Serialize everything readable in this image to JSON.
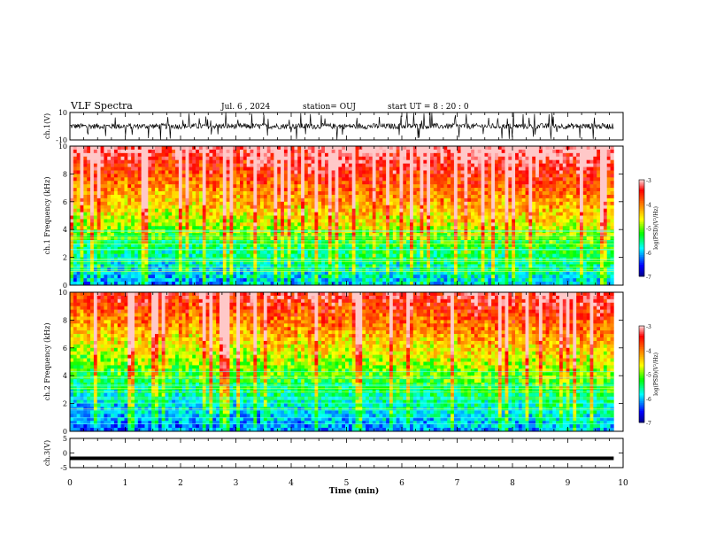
{
  "header": {
    "title": "VLF Spectra",
    "date": "Jul. 6 , 2024",
    "station": "station= OUJ",
    "start": "start UT = 8 : 20 : 0"
  },
  "chart_data": [
    {
      "type": "line",
      "name": "ch1-waveform",
      "ylabel": "ch.1(V)",
      "ylim": [
        -10,
        10
      ],
      "yticks": [
        "10",
        "-10"
      ],
      "xlim": [
        0,
        10
      ],
      "color": "#000000",
      "description_values": {
        "baseline": 0,
        "typical_amplitude": 2,
        "spike_amplitude": 10
      }
    },
    {
      "type": "heatmap",
      "name": "ch1-spectrogram",
      "ylabel": "ch.1 Frequency (kHz)",
      "ylim": [
        0,
        10
      ],
      "yticks": [
        "0",
        "2",
        "4",
        "6",
        "8",
        "10"
      ],
      "xlim": [
        0,
        9.83
      ],
      "colorbar": {
        "label": "log(PSD)(V²/Hz)",
        "range": [
          -7,
          -3
        ],
        "ticks": [
          "-3",
          "-4",
          "-5",
          "-6",
          "-7"
        ],
        "colors": [
          "#000080",
          "#0000ff",
          "#00ffff",
          "#00ff00",
          "#ffff00",
          "#ff8000",
          "#ff0000",
          "#ffffff"
        ]
      }
    },
    {
      "type": "heatmap",
      "name": "ch2-spectrogram",
      "ylabel": "ch.2 Frequency (kHz)",
      "ylim": [
        0,
        10
      ],
      "yticks": [
        "0",
        "2",
        "4",
        "6",
        "8",
        "10"
      ],
      "xlim": [
        0,
        9.83
      ],
      "colorbar": {
        "label": "log(PSD)(V²/Hz)",
        "range": [
          -7,
          -3
        ],
        "ticks": [
          "-3",
          "-4",
          "-5",
          "-6",
          "-7"
        ],
        "colors": [
          "#000080",
          "#0000ff",
          "#00ffff",
          "#00ff00",
          "#ffff00",
          "#ff8000",
          "#ff0000",
          "#ffffff"
        ]
      }
    },
    {
      "type": "line",
      "name": "ch3-waveform",
      "ylabel": "ch.3(V)",
      "ylim": [
        -5,
        5
      ],
      "yticks": [
        "5",
        "0",
        "-5"
      ],
      "xlim": [
        0,
        9.83
      ],
      "values": {
        "constant": -1.8
      },
      "color": "#000000"
    }
  ],
  "xaxis": {
    "label": "Time (min)",
    "ticks": [
      "0",
      "1",
      "2",
      "3",
      "4",
      "5",
      "6",
      "7",
      "8",
      "9",
      "10"
    ]
  }
}
